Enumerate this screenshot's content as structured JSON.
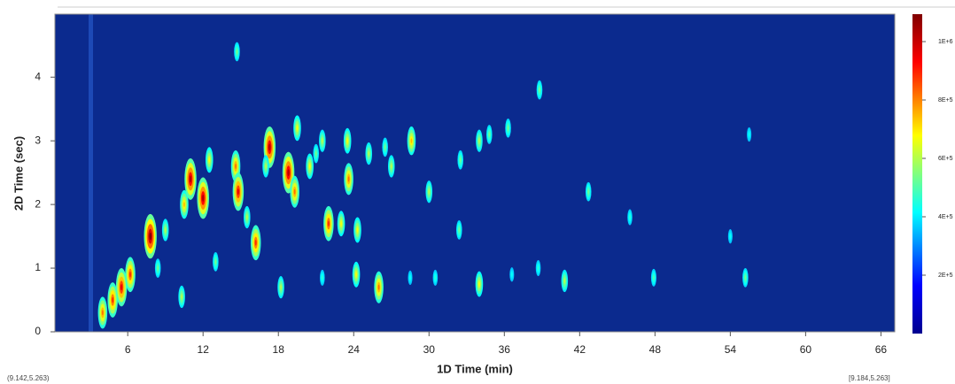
{
  "chart_data": {
    "type": "contour",
    "x_label": "1D Time (min)",
    "y_label": "2D Time (sec)",
    "xlim": [
      0.2,
      67.1
    ],
    "ylim": [
      0,
      4.99
    ],
    "xticks": [
      6,
      12,
      18,
      24,
      30,
      36,
      42,
      48,
      54,
      60,
      66
    ],
    "yticks": [
      0,
      1,
      2,
      3,
      4
    ],
    "clim": [
      0,
      1094000
    ],
    "cticks": [
      {
        "value": 200000,
        "label": "2E+5"
      },
      {
        "value": 400000,
        "label": "4E+5"
      },
      {
        "value": 600000,
        "label": "6E+5"
      },
      {
        "value": 800000,
        "label": "8E+5"
      },
      {
        "value": 1000000,
        "label": "1E+6"
      }
    ],
    "background": "#0b2a8e",
    "peaks": {
      "x": [
        4.0,
        4.8,
        5.5,
        6.2,
        7.8,
        10.3,
        10.5,
        11.0,
        12.0,
        12.5,
        14.6,
        14.8,
        14.7,
        16.2,
        15.5,
        17.3,
        18.2,
        18.8,
        19.3,
        19.5,
        20.5,
        21.5,
        22.0,
        23.0,
        23.6,
        23.5,
        24.2,
        24.3,
        26.0,
        25.2,
        27.0,
        28.6,
        30.0,
        30.5,
        32.4,
        32.5,
        34.0,
        34.0,
        34.8,
        36.3,
        38.8,
        40.8,
        42.7,
        46.0,
        47.9,
        54.0,
        55.2,
        55.5,
        21.0,
        17.0,
        26.5,
        13.0,
        9.0,
        8.4,
        21.5,
        28.5,
        36.6,
        38.7
      ],
      "y": [
        0.3,
        0.5,
        0.7,
        0.9,
        1.5,
        0.55,
        2.0,
        2.4,
        2.1,
        2.7,
        2.6,
        2.2,
        4.4,
        1.4,
        1.8,
        2.9,
        0.7,
        2.5,
        2.2,
        3.2,
        2.6,
        3.0,
        1.7,
        1.7,
        2.4,
        3.0,
        0.9,
        1.6,
        0.7,
        2.8,
        2.6,
        3.0,
        2.2,
        0.85,
        1.6,
        2.7,
        0.75,
        3.0,
        3.1,
        3.2,
        3.8,
        0.8,
        2.2,
        1.8,
        0.85,
        1.5,
        0.85,
        3.1,
        2.8,
        2.6,
        2.9,
        1.1,
        1.6,
        1.0,
        0.85,
        0.85,
        0.9,
        1.0
      ],
      "values": [
        700000,
        800000,
        900000,
        800000,
        1094000,
        400000,
        600000,
        1000000,
        1000000,
        500000,
        700000,
        900000,
        300000,
        800000,
        400000,
        1000000,
        400000,
        1000000,
        700000,
        500000,
        500000,
        400000,
        800000,
        500000,
        700000,
        500000,
        500000,
        500000,
        700000,
        400000,
        400000,
        600000,
        400000,
        200000,
        300000,
        300000,
        500000,
        400000,
        300000,
        300000,
        300000,
        400000,
        300000,
        200000,
        250000,
        150000,
        300000,
        150000,
        300000,
        400000,
        300000,
        300000,
        400000,
        300000,
        200000,
        150000,
        150000,
        200000
      ]
    },
    "corner_left": "(9.142,5.263)",
    "corner_right": "[9.184,5.263]"
  }
}
